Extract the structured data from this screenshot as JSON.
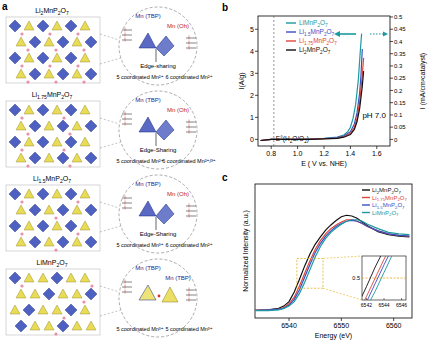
{
  "panel_labels": [
    "a",
    "b",
    "c"
  ],
  "structures": [
    {
      "formula": "Li2MnP2O7",
      "sites": [
        "Mn (TBP)",
        "Mn (Oh)"
      ],
      "linkage": "Edge-sharing",
      "coordination": [
        "5 coordinated Mn²⁺",
        "6 coordinated Mn²⁺"
      ]
    },
    {
      "formula": "Li1.75MnP2O7",
      "sites": [
        "Mn (TBP)",
        "Mn (Oh)"
      ],
      "linkage": "Edge-Sharing",
      "coordination": [
        "5 coordinated Mn²⁺",
        "6 coordinated Mn²⁺/³⁺"
      ]
    },
    {
      "formula": "Li1.5MnP2O7",
      "sites": [
        "Mn (TBP)",
        "Mn (Oh)"
      ],
      "linkage": "Edge-Sharing",
      "coordination": [
        "5 coordinated Mn³⁺",
        "6 coordinated Mn²⁺"
      ]
    },
    {
      "formula": "LiMnP2O7",
      "sites": [
        "Mn (TBP)",
        "Mn (TBP)"
      ],
      "coordination": [
        "5 coordinated Mn³⁺",
        "5 coordinated Mn³⁺"
      ]
    }
  ],
  "chart_data": [
    {
      "type": "line",
      "x_label": "E ( V vs. NHE)",
      "y_label": "I(A/g)",
      "y2_label": "I (mA/cm²catalyst)",
      "xlim": [
        0.7,
        1.7
      ],
      "xticks": [
        0.8,
        {
          "value": 1,
          "label": "1.0"
        },
        1.2,
        1.4,
        1.6
      ],
      "ylim": [
        -0.3,
        5.6
      ],
      "yticks": [
        0,
        1,
        2,
        3,
        4,
        5
      ],
      "y2lim": [
        -0.027,
        0.504
      ],
      "y2ticks": [
        0,
        0.05,
        0.1,
        0.15,
        0.2,
        0.25,
        0.3,
        0.35,
        0.4,
        0.45,
        0.5
      ],
      "legend": "upper left",
      "annotations": [
        {
          "text": "E°(H2O/O2)",
          "x": 0.82
        },
        {
          "text": "pH 7.0"
        }
      ],
      "series": [
        {
          "name": "LiMnP2O7",
          "color": "#1b9aa0",
          "x": [
            0.72,
            0.8,
            0.9,
            1.0,
            1.1,
            1.2,
            1.3,
            1.35,
            1.38,
            1.4,
            1.42,
            1.44,
            1.46,
            1.475,
            1.485
          ],
          "values": [
            -0.05,
            0,
            0,
            0,
            0.02,
            0.05,
            0.1,
            0.2,
            0.35,
            0.55,
            0.95,
            1.6,
            2.7,
            4.0,
            4.8
          ]
        },
        {
          "name": "Li1.5MnP2O7",
          "color": "#3a4fc6",
          "x": [
            0.72,
            0.8,
            0.9,
            1.0,
            1.1,
            1.2,
            1.3,
            1.35,
            1.4,
            1.43,
            1.45,
            1.47,
            1.48,
            1.49
          ],
          "values": [
            -0.05,
            0,
            0,
            0,
            0.01,
            0.04,
            0.08,
            0.15,
            0.35,
            0.7,
            1.2,
            2.1,
            2.9,
            4.1
          ]
        },
        {
          "name": "Li1.75MnP2O7",
          "color": "#e0453a",
          "x": [
            0.72,
            0.8,
            0.9,
            1.0,
            1.1,
            1.2,
            1.3,
            1.35,
            1.4,
            1.43,
            1.45,
            1.47,
            1.49,
            1.5
          ],
          "values": [
            -0.05,
            0,
            0,
            0,
            0.01,
            0.03,
            0.06,
            0.12,
            0.28,
            0.55,
            0.95,
            1.7,
            2.9,
            3.7
          ]
        },
        {
          "name": "Li2MnP2O7",
          "color": "#111111",
          "x": [
            0.72,
            0.8,
            0.9,
            1.0,
            1.1,
            1.2,
            1.3,
            1.35,
            1.4,
            1.43,
            1.45,
            1.47,
            1.49,
            1.5
          ],
          "values": [
            -0.05,
            0,
            0,
            0,
            0,
            0.02,
            0.05,
            0.1,
            0.22,
            0.45,
            0.8,
            1.4,
            2.4,
            3.1
          ]
        }
      ]
    },
    {
      "type": "line",
      "x_label": "Energy (eV)",
      "y_label": "Normalized Intensity (a.u.)",
      "xlim": [
        6533.5,
        6563.5
      ],
      "xticks": [
        6540,
        6550,
        6560
      ],
      "ylim": [
        -0.1,
        1.7
      ],
      "tick_labels": "x",
      "legend": "upper right",
      "x": [
        6533,
        6536,
        6538,
        6539,
        6540,
        6541,
        6542,
        6543,
        6544,
        6545,
        6546,
        6547,
        6548,
        6549,
        6550,
        6551,
        6552,
        6553,
        6554,
        6555,
        6557,
        6559,
        6561,
        6563
      ],
      "series": [
        {
          "name": "Li2MnP2O7",
          "color": "#111111",
          "values": [
            0,
            0.01,
            0.03,
            0.06,
            0.12,
            0.25,
            0.42,
            0.6,
            0.76,
            0.89,
            0.99,
            1.08,
            1.15,
            1.21,
            1.26,
            1.28,
            1.27,
            1.24,
            1.19,
            1.14,
            1.06,
            1.02,
            1.0,
            0.99
          ]
        },
        {
          "name": "Li1.75MnP2O7",
          "color": "#e0453a",
          "values": [
            0,
            0.01,
            0.02,
            0.04,
            0.09,
            0.18,
            0.33,
            0.5,
            0.67,
            0.82,
            0.94,
            1.03,
            1.1,
            1.15,
            1.19,
            1.22,
            1.22,
            1.2,
            1.17,
            1.13,
            1.07,
            1.03,
            1.01,
            1.0
          ]
        },
        {
          "name": "Li1.5MnP2O7",
          "color": "#3a4fc6",
          "values": [
            0,
            0.01,
            0.02,
            0.03,
            0.07,
            0.15,
            0.28,
            0.45,
            0.62,
            0.78,
            0.9,
            1.0,
            1.07,
            1.13,
            1.17,
            1.2,
            1.21,
            1.2,
            1.17,
            1.13,
            1.07,
            1.03,
            1.01,
            1.0
          ]
        },
        {
          "name": "LiMnP2O7",
          "color": "#1b9aa0",
          "values": [
            0,
            0,
            0.01,
            0.03,
            0.06,
            0.12,
            0.23,
            0.38,
            0.55,
            0.72,
            0.86,
            0.97,
            1.05,
            1.11,
            1.16,
            1.2,
            1.22,
            1.22,
            1.2,
            1.16,
            1.1,
            1.05,
            1.03,
            1.02
          ]
        }
      ],
      "inset": {
        "xlim": [
          6541.5,
          6546.5
        ],
        "ylim": [
          0.3,
          0.7
        ],
        "xticks": [
          6542,
          6544,
          6546
        ],
        "reference": 0.5
      }
    }
  ]
}
